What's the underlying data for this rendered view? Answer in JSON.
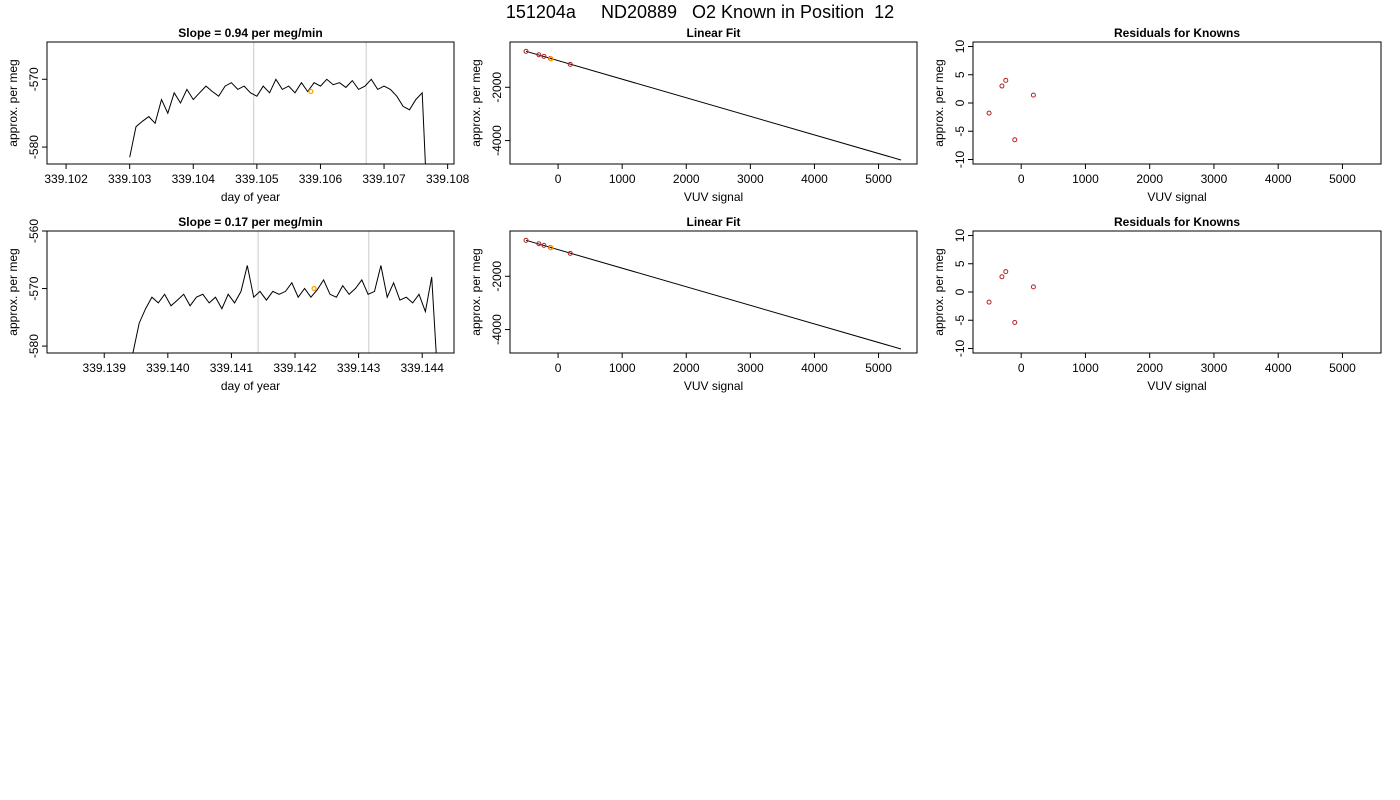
{
  "page_title": "151204a     ND20889   O2 Known in Position  12",
  "chart_data": [
    {
      "type": "line",
      "title": "Slope =  0.94  per meg/min",
      "xlabel": "day of year",
      "ylabel": "approx. per meg",
      "xlim": [
        339.1017,
        339.1081
      ],
      "ylim": [
        -582.5,
        -564.5
      ],
      "xticks": [
        339.102,
        339.103,
        339.104,
        339.105,
        339.106,
        339.107,
        339.108
      ],
      "xtick_labels": [
        "339.102",
        "339.103",
        "339.104",
        "339.105",
        "339.106",
        "339.107",
        "339.108"
      ],
      "yticks": [
        -580,
        -570
      ],
      "ytick_labels": [
        "-580",
        "-570"
      ],
      "vlines": [
        339.10495,
        339.10672
      ],
      "vline_color": "#d3d3d3",
      "line_color": "#000000",
      "marker_color": "#ffa500",
      "series": [
        {
          "x": [
            339.103,
            339.1031,
            339.1032,
            339.1033,
            339.1034,
            339.1035,
            339.1036,
            339.1037,
            339.1038,
            339.1039,
            339.104,
            339.1041,
            339.1042,
            339.1043,
            339.1044,
            339.1045,
            339.1046,
            339.1047,
            339.1048,
            339.1049,
            339.105,
            339.1051,
            339.1052,
            339.1053,
            339.1054,
            339.1055,
            339.1056,
            339.1057,
            339.1058,
            339.1059,
            339.106,
            339.1061,
            339.1062,
            339.1063,
            339.1064,
            339.1065,
            339.1066,
            339.1067,
            339.1068,
            339.1069,
            339.107,
            339.1071,
            339.1072,
            339.1073,
            339.1074,
            339.1075,
            339.1076,
            339.10765
          ],
          "y": [
            -581.5,
            -577.0,
            -576.2,
            -575.5,
            -576.5,
            -573.0,
            -575.0,
            -572.0,
            -573.5,
            -571.5,
            -573.0,
            -572.0,
            -571.0,
            -571.8,
            -572.5,
            -571.0,
            -570.5,
            -571.5,
            -571.0,
            -572.0,
            -572.5,
            -571.0,
            -572.0,
            -570.0,
            -571.5,
            -571.0,
            -572.0,
            -570.5,
            -571.8,
            -570.5,
            -571.0,
            -570.0,
            -570.8,
            -570.5,
            -571.2,
            -570.2,
            -571.5,
            -571.0,
            -570.0,
            -571.5,
            -571.0,
            -571.5,
            -572.5,
            -574.0,
            -574.5,
            -573.0,
            -572.0,
            -582.5
          ]
        }
      ],
      "marker": {
        "x": [
          339.10585
        ],
        "y": [
          -571.8
        ]
      }
    },
    {
      "type": "scatter",
      "title": "Linear Fit",
      "xlabel": "VUV signal",
      "ylabel": "approx. per meg",
      "xlim": [
        -750,
        5600
      ],
      "ylim": [
        -4880,
        -300
      ],
      "xticks": [
        0,
        1000,
        2000,
        3000,
        4000,
        5000
      ],
      "xtick_labels": [
        "0",
        "1000",
        "2000",
        "3000",
        "4000",
        "5000"
      ],
      "yticks": [
        -4000,
        -2000
      ],
      "ytick_labels": [
        "-4000",
        "-2000"
      ],
      "fit_line": {
        "x": [
          -500,
          5350
        ],
        "y": [
          -650,
          -4730
        ]
      },
      "line_color": "#000000",
      "point_color": "#b22222",
      "marker_color": "#ffa500",
      "series": [
        {
          "x": [
            -500,
            -300,
            -220,
            -120,
            190
          ],
          "y": [
            -650,
            -780,
            -840,
            -920,
            -1140
          ]
        }
      ],
      "marker": {
        "x": [
          -110
        ],
        "y": [
          -930
        ]
      }
    },
    {
      "type": "scatter",
      "title": "Residuals for Knowns",
      "xlabel": "VUV signal",
      "ylabel": "approx. per meg",
      "xlim": [
        -750,
        5600
      ],
      "ylim": [
        -10.8,
        10.8
      ],
      "xticks": [
        0,
        1000,
        2000,
        3000,
        4000,
        5000
      ],
      "xtick_labels": [
        "0",
        "1000",
        "2000",
        "3000",
        "4000",
        "5000"
      ],
      "yticks": [
        -10,
        -5,
        0,
        5,
        10
      ],
      "ytick_labels": [
        "-10",
        "-5",
        "0",
        "5",
        "10"
      ],
      "point_color": "#b22222",
      "series": [
        {
          "x": [
            -500,
            -300,
            -240,
            -100,
            190
          ],
          "y": [
            -1.8,
            3.0,
            4.0,
            -6.5,
            1.4
          ]
        }
      ]
    },
    {
      "type": "line",
      "title": "Slope =  0.17  per meg/min",
      "xlabel": "day of year",
      "ylabel": "approx. per meg",
      "xlim": [
        339.1381,
        339.1445
      ],
      "ylim": [
        -581.2,
        -560.0
      ],
      "xticks": [
        339.139,
        339.14,
        339.141,
        339.142,
        339.143,
        339.144
      ],
      "xtick_labels": [
        "339.139",
        "339.140",
        "339.141",
        "339.142",
        "339.143",
        "339.144"
      ],
      "yticks": [
        -580,
        -570,
        -560
      ],
      "ytick_labels": [
        "-580",
        "-570",
        "-560"
      ],
      "vlines": [
        339.14142,
        339.14316
      ],
      "vline_color": "#d3d3d3",
      "line_color": "#000000",
      "marker_color": "#ffa500",
      "series": [
        {
          "x": [
            339.13945,
            339.13955,
            339.13965,
            339.13975,
            339.13985,
            339.13995,
            339.14005,
            339.14015,
            339.14025,
            339.14035,
            339.14045,
            339.14055,
            339.14065,
            339.14075,
            339.14085,
            339.14095,
            339.14105,
            339.14115,
            339.14125,
            339.14135,
            339.14145,
            339.14155,
            339.14165,
            339.14175,
            339.14185,
            339.14195,
            339.14205,
            339.14215,
            339.14225,
            339.14235,
            339.14245,
            339.14255,
            339.14265,
            339.14275,
            339.14285,
            339.14295,
            339.14305,
            339.14315,
            339.14325,
            339.14335,
            339.14345,
            339.14355,
            339.14365,
            339.14375,
            339.14385,
            339.14395,
            339.14405,
            339.14415,
            339.14422
          ],
          "y": [
            -581.2,
            -576.0,
            -573.5,
            -571.5,
            -572.5,
            -571.0,
            -573.0,
            -572.0,
            -571.0,
            -573.0,
            -571.5,
            -571.0,
            -572.5,
            -571.5,
            -573.5,
            -571.0,
            -572.5,
            -570.5,
            -566.0,
            -571.5,
            -570.5,
            -572.0,
            -570.5,
            -571.0,
            -570.5,
            -569.0,
            -571.5,
            -570.0,
            -571.5,
            -570.2,
            -568.5,
            -571.0,
            -571.5,
            -569.5,
            -571.0,
            -570.0,
            -568.5,
            -571.0,
            -570.5,
            -566.0,
            -571.5,
            -569.0,
            -572.0,
            -571.5,
            -572.5,
            -571.0,
            -574.0,
            -568.0,
            -581.2
          ]
        }
      ],
      "marker": {
        "x": [
          339.1423
        ],
        "y": [
          -570.0
        ]
      }
    },
    {
      "type": "scatter",
      "title": "Linear Fit",
      "xlabel": "VUV signal",
      "ylabel": "approx. per meg",
      "xlim": [
        -750,
        5600
      ],
      "ylim": [
        -4880,
        -300
      ],
      "xticks": [
        0,
        1000,
        2000,
        3000,
        4000,
        5000
      ],
      "xtick_labels": [
        "0",
        "1000",
        "2000",
        "3000",
        "4000",
        "5000"
      ],
      "yticks": [
        -4000,
        -2000
      ],
      "ytick_labels": [
        "-4000",
        "-2000"
      ],
      "fit_line": {
        "x": [
          -500,
          5350
        ],
        "y": [
          -650,
          -4730
        ]
      },
      "line_color": "#000000",
      "point_color": "#b22222",
      "marker_color": "#ffa500",
      "series": [
        {
          "x": [
            -500,
            -300,
            -220,
            -120,
            190
          ],
          "y": [
            -650,
            -780,
            -840,
            -920,
            -1140
          ]
        }
      ],
      "marker": {
        "x": [
          -110
        ],
        "y": [
          -930
        ]
      }
    },
    {
      "type": "scatter",
      "title": "Residuals for Knowns",
      "xlabel": "VUV signal",
      "ylabel": "approx. per meg",
      "xlim": [
        -750,
        5600
      ],
      "ylim": [
        -10.8,
        10.8
      ],
      "xticks": [
        0,
        1000,
        2000,
        3000,
        4000,
        5000
      ],
      "xtick_labels": [
        "0",
        "1000",
        "2000",
        "3000",
        "4000",
        "5000"
      ],
      "yticks": [
        -10,
        -5,
        0,
        5,
        10
      ],
      "ytick_labels": [
        "-10",
        "-5",
        "0",
        "5",
        "10"
      ],
      "point_color": "#b22222",
      "series": [
        {
          "x": [
            -500,
            -300,
            -240,
            -100,
            190
          ],
          "y": [
            -1.8,
            2.7,
            3.6,
            -5.4,
            0.9
          ]
        }
      ]
    }
  ]
}
